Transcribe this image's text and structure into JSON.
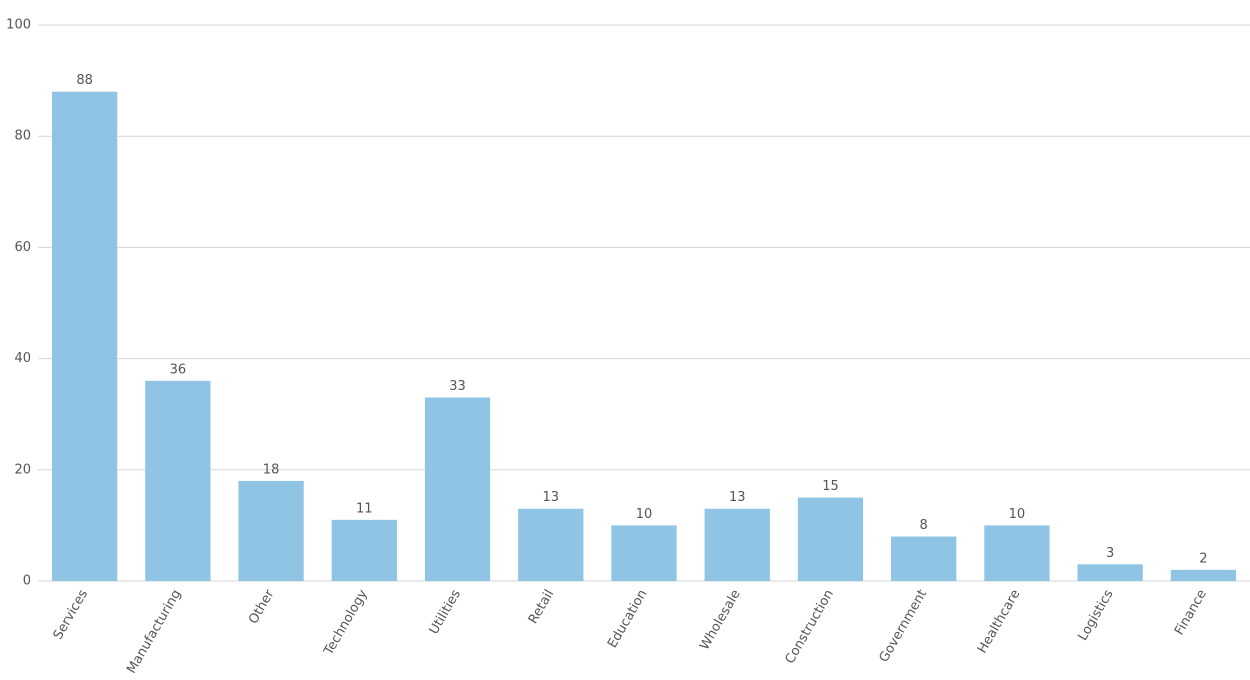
{
  "chart_data": {
    "type": "bar",
    "categories": [
      "Services",
      "Manufacturing",
      "Other",
      "Technology",
      "Utilities",
      "Retail",
      "Education",
      "Wholesale",
      "Construction",
      "Government",
      "Healthcare",
      "Logistics",
      "Finance"
    ],
    "values": [
      88,
      36,
      18,
      11,
      33,
      13,
      10,
      13,
      15,
      8,
      10,
      3,
      2
    ],
    "color": "#8fc4e4",
    "ylim": [
      0,
      100
    ],
    "yticks": [
      0,
      20,
      40,
      60,
      80,
      100
    ],
    "grid": true
  }
}
